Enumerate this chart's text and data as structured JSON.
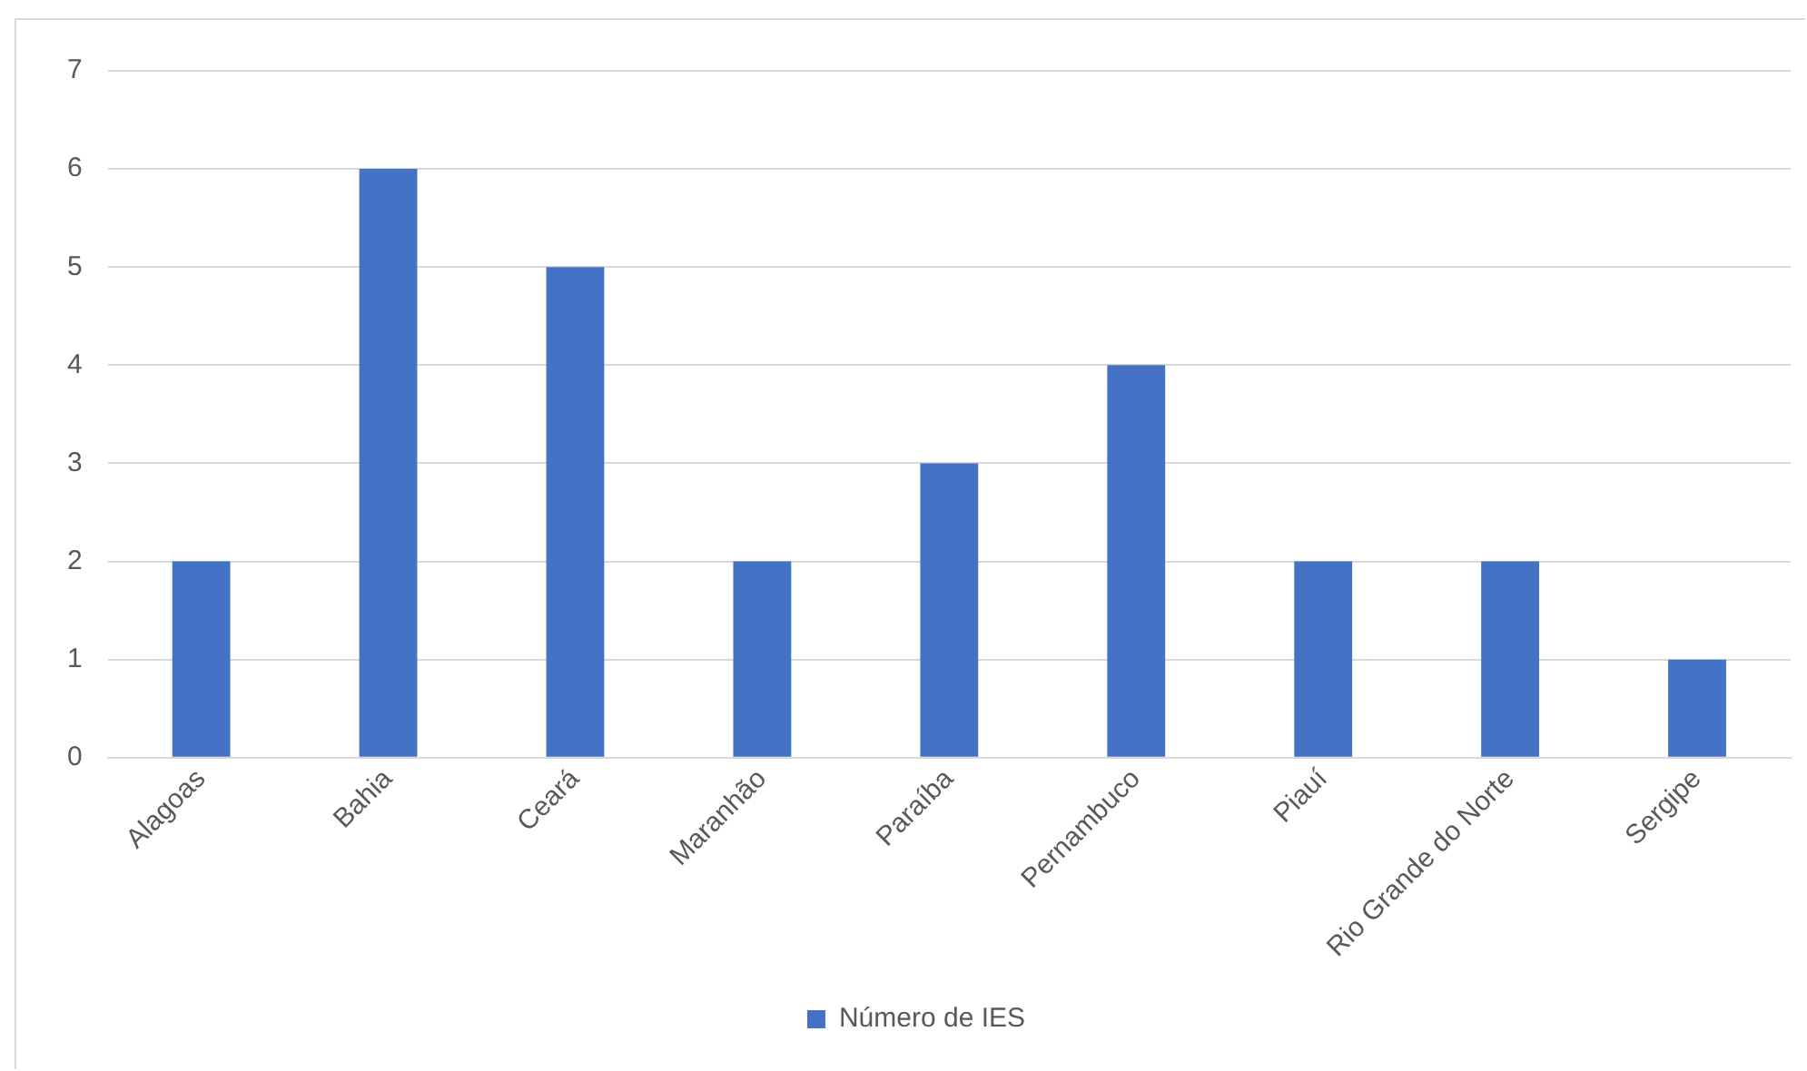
{
  "chart_data": {
    "type": "bar",
    "categories": [
      "Alagoas",
      "Bahia",
      "Ceará",
      "Maranhão",
      "Paraíba",
      "Pernambuco",
      "Piauí",
      "Rio Grande do Norte",
      "Sergipe"
    ],
    "series": [
      {
        "name": "Número de IES",
        "color": "#4472c4",
        "values": [
          2,
          6,
          5,
          2,
          3,
          4,
          2,
          2,
          1
        ]
      }
    ],
    "ylim": [
      0,
      7
    ],
    "yticks": [
      0,
      1,
      2,
      3,
      4,
      5,
      6,
      7
    ],
    "grid": "y",
    "legend": "bottom"
  }
}
